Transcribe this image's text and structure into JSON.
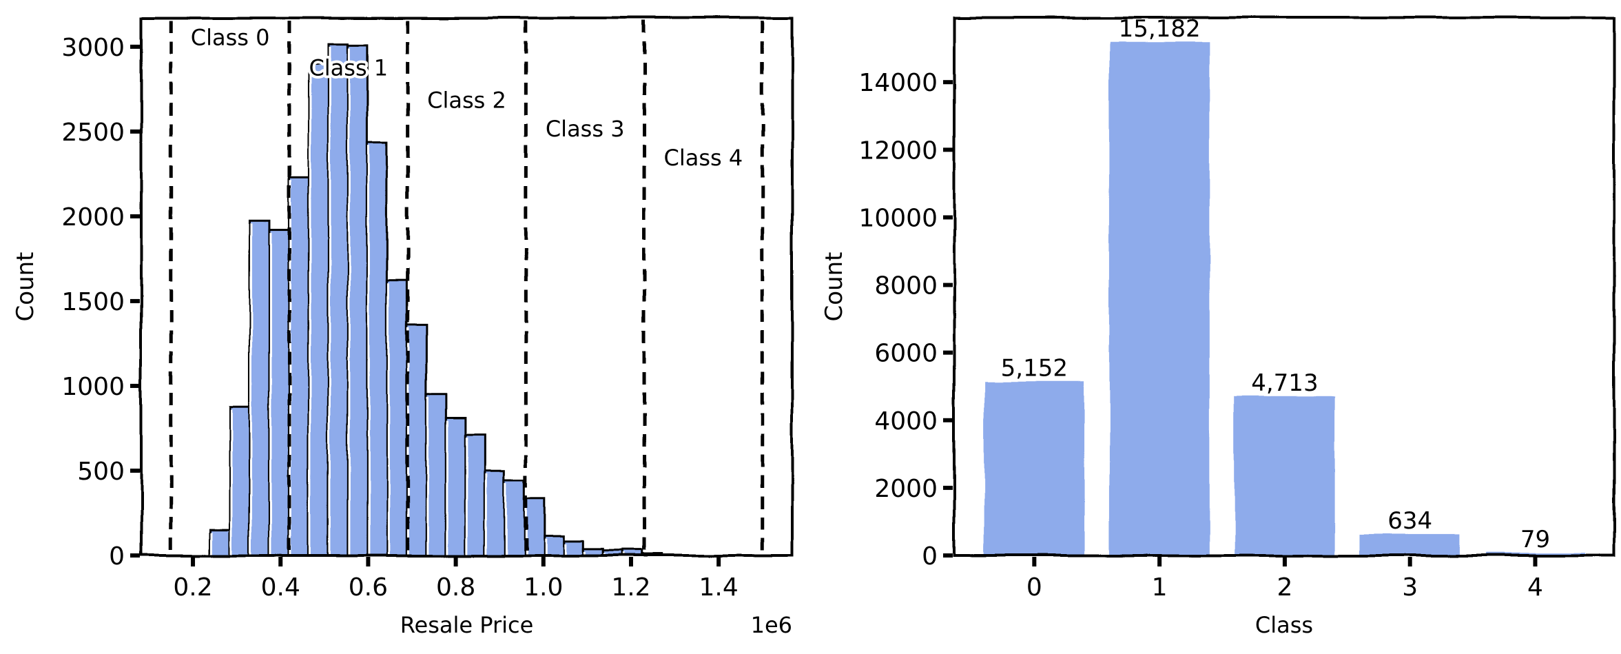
{
  "chart_data": [
    {
      "type": "bar",
      "subtype": "histogram",
      "xlabel": "Resale Price",
      "ylabel": "Count",
      "x_offset_label": "1e6",
      "xlim": [
        0.082,
        1.568
      ],
      "ylim": [
        0,
        3170
      ],
      "xticks": [
        0.2,
        0.4,
        0.6,
        0.8,
        1.0,
        1.2,
        1.4
      ],
      "xtick_labels": [
        "0.2",
        "0.4",
        "0.6",
        "0.8",
        "1.0",
        "1.2",
        "1.4"
      ],
      "yticks": [
        0,
        500,
        1000,
        1500,
        2000,
        2500,
        3000
      ],
      "ytick_labels": [
        "0",
        "500",
        "1000",
        "1500",
        "2000",
        "2500",
        "3000"
      ],
      "bin_start": 0.24,
      "bin_width": 0.0448,
      "counts": [
        152,
        875,
        1972,
        1920,
        2228,
        2900,
        3017,
        3010,
        2434,
        1623,
        1360,
        952,
        811,
        713,
        497,
        443,
        332,
        116,
        86,
        39,
        30,
        34,
        10
      ],
      "class_boundaries": [
        0.15,
        0.42,
        0.69,
        0.96,
        1.23,
        1.5
      ],
      "class_labels": [
        "Class 0",
        "Class 1",
        "Class 2",
        "Class 3",
        "Class 4"
      ],
      "bar_color": "#8eabeb",
      "grid": false
    },
    {
      "type": "bar",
      "xlabel": "Class",
      "ylabel": "Count",
      "categories": [
        "0",
        "1",
        "2",
        "3",
        "4"
      ],
      "values": [
        5152,
        15182,
        4713,
        634,
        79
      ],
      "data_labels": [
        "5,152",
        "15,182",
        "4,713",
        "634",
        "79"
      ],
      "xlim": [
        -0.64,
        4.63
      ],
      "ylim": [
        0,
        15900
      ],
      "yticks": [
        0,
        2000,
        4000,
        6000,
        8000,
        10000,
        12000,
        14000
      ],
      "ytick_labels": [
        "0",
        "2000",
        "4000",
        "6000",
        "8000",
        "10000",
        "12000",
        "14000"
      ],
      "bar_color": "#8eabeb",
      "grid": false
    }
  ]
}
